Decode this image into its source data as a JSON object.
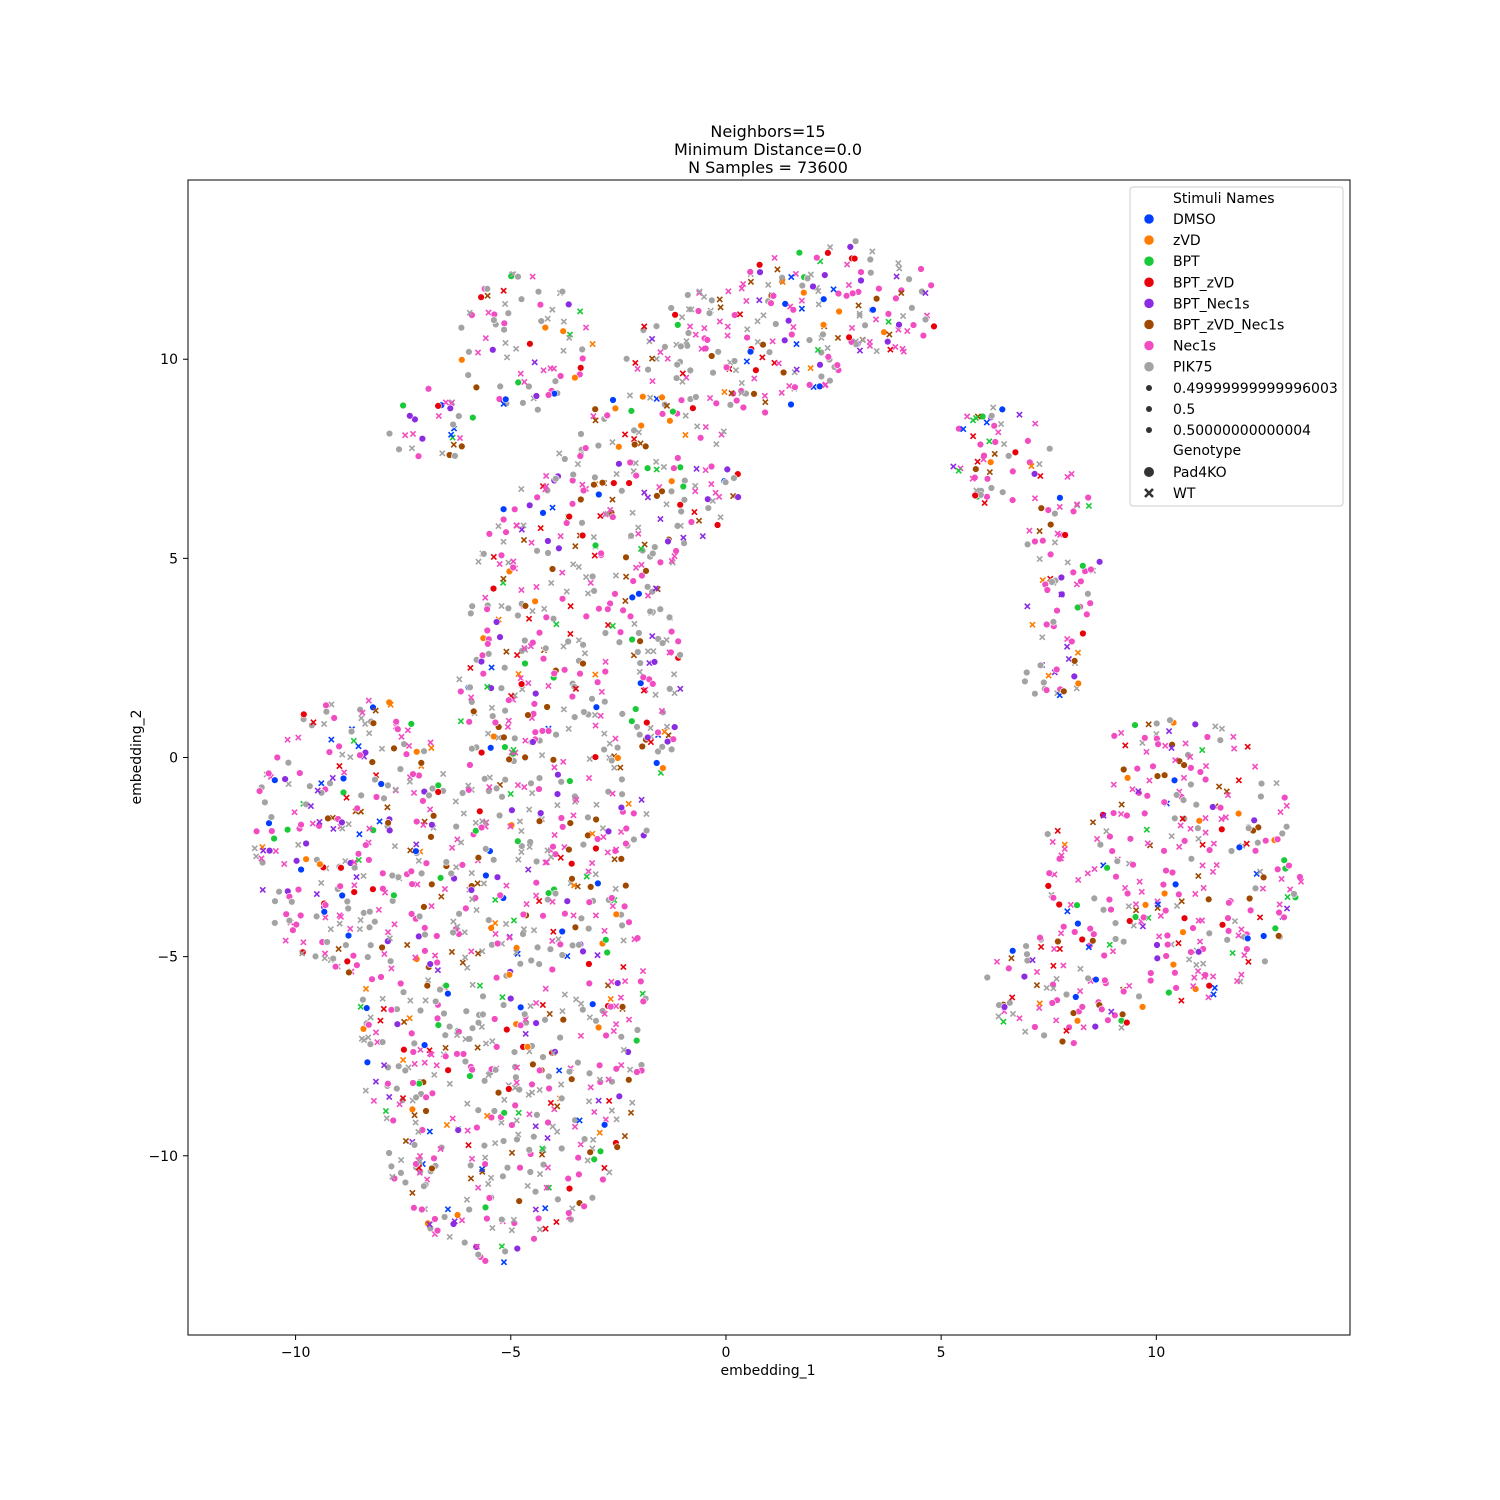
{
  "chart_data": {
    "type": "scatter",
    "title": [
      "Neighbors=15",
      "Minimum Distance=0.0",
      "N Samples = 73600"
    ],
    "xlabel": "embedding_1",
    "ylabel": "embedding_2",
    "xlim": [
      -12.5,
      14.5
    ],
    "ylim": [
      -14.5,
      14.5
    ],
    "xticks": [
      -10,
      -5,
      0,
      5,
      10
    ],
    "yticks": [
      -10,
      -5,
      0,
      5,
      10
    ],
    "xtick_labels": [
      "−10",
      "−5",
      "0",
      "5",
      "10"
    ],
    "ytick_labels": [
      "−10",
      "−5",
      "0",
      "5",
      "10"
    ],
    "grid": false,
    "legend": {
      "placement": "top-right",
      "hue_title": "Stimuli Names",
      "hue": [
        {
          "name": "DMSO",
          "color": "#023eff"
        },
        {
          "name": "zVD",
          "color": "#ff7c00"
        },
        {
          "name": "BPT",
          "color": "#1ac938"
        },
        {
          "name": "BPT_zVD",
          "color": "#e8000b"
        },
        {
          "name": "BPT_Nec1s",
          "color": "#8b2be2"
        },
        {
          "name": "BPT_zVD_Nec1s",
          "color": "#9f4800"
        },
        {
          "name": "Nec1s",
          "color": "#f14cc1"
        },
        {
          "name": "PIK75",
          "color": "#a3a3a3"
        }
      ],
      "size_entries": [
        "0.49999999999996003",
        "0.5",
        "0.50000000000004"
      ],
      "style_title": "Genotype",
      "style": [
        {
          "name": "Pad4KO",
          "marker": "circle"
        },
        {
          "name": "WT",
          "marker": "x"
        }
      ]
    },
    "clusters": [
      {
        "name": "main-left-body",
        "x": -4.5,
        "y": -3.0,
        "spread_x": 4.0,
        "spread_y": 6.5
      },
      {
        "name": "upper-arc",
        "x": 0.5,
        "y": 9.0,
        "spread_x": 6.0,
        "spread_y": 3.5
      },
      {
        "name": "right-arm",
        "x": 7.5,
        "y": 4.0,
        "spread_x": 1.5,
        "spread_y": 4.5
      },
      {
        "name": "right-blob",
        "x": 10.0,
        "y": -3.0,
        "spread_x": 3.5,
        "spread_y": 4.0
      }
    ]
  }
}
